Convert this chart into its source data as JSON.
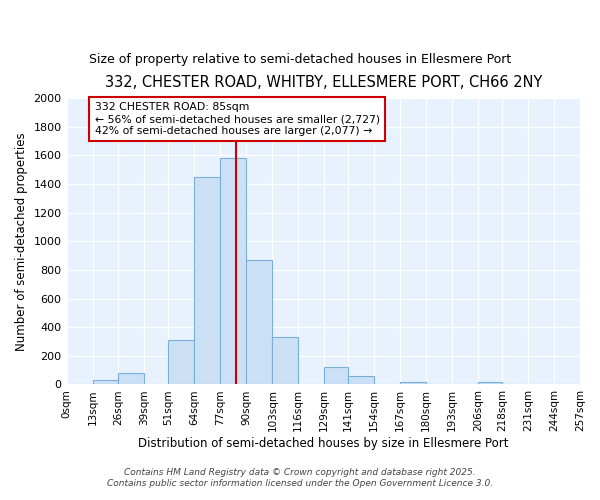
{
  "title": "332, CHESTER ROAD, WHITBY, ELLESMERE PORT, CH66 2NY",
  "subtitle": "Size of property relative to semi-detached houses in Ellesmere Port",
  "xlabel": "Distribution of semi-detached houses by size in Ellesmere Port",
  "ylabel": "Number of semi-detached properties",
  "bin_labels": [
    "0sqm",
    "13sqm",
    "26sqm",
    "39sqm",
    "51sqm",
    "64sqm",
    "77sqm",
    "90sqm",
    "103sqm",
    "116sqm",
    "129sqm",
    "141sqm",
    "154sqm",
    "167sqm",
    "180sqm",
    "193sqm",
    "206sqm",
    "218sqm",
    "231sqm",
    "244sqm",
    "257sqm"
  ],
  "bin_left_edges": [
    0,
    13,
    26,
    39,
    51,
    64,
    77,
    90,
    103,
    116,
    129,
    141,
    154,
    167,
    180,
    193,
    206,
    218,
    231,
    244
  ],
  "bin_widths": [
    13,
    13,
    13,
    12,
    13,
    13,
    13,
    13,
    13,
    13,
    12,
    13,
    13,
    13,
    13,
    13,
    12,
    13,
    13,
    13
  ],
  "bar_heights": [
    2,
    30,
    80,
    0,
    310,
    1450,
    1580,
    870,
    330,
    0,
    120,
    60,
    0,
    20,
    0,
    0,
    20,
    0,
    0,
    0
  ],
  "bar_color": "#cce0f5",
  "bar_edge_color": "#7ab0d8",
  "property_size": 85,
  "property_label": "332 CHESTER ROAD: 85sqm",
  "pct_smaller": 56,
  "pct_larger": 42,
  "n_smaller": 2727,
  "n_larger": 2077,
  "vline_color": "#cc0000",
  "annotation_box_edge": "#cc0000",
  "fig_background": "#ffffff",
  "ax_background": "#e8f2ff",
  "ylim": [
    0,
    2000
  ],
  "yticks": [
    0,
    200,
    400,
    600,
    800,
    1000,
    1200,
    1400,
    1600,
    1800,
    2000
  ],
  "footer_line1": "Contains HM Land Registry data © Crown copyright and database right 2025.",
  "footer_line2": "Contains public sector information licensed under the Open Government Licence 3.0."
}
